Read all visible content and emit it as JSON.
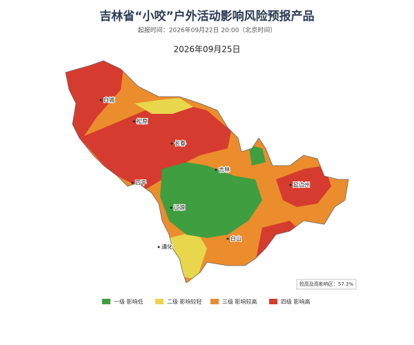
{
  "header": {
    "title": "吉林省“小咬”户外活动影响风险预报产品",
    "subtitle": "起报时间：2026年09月22日 20:00（北京时间）",
    "date": "2026年09月25日"
  },
  "cities": [
    "白城",
    "松原",
    "长春",
    "吉林",
    "四平",
    "辽源",
    "通化",
    "白山",
    "延边州"
  ],
  "stat": "较高及高影响区：57.3%",
  "legend": [
    {
      "label": "一级 影响低",
      "color": "#3f9e3f"
    },
    {
      "label": "二级 影响较轻",
      "color": "#e8d74c"
    },
    {
      "label": "三级 影响较高",
      "color": "#eb8d2c"
    },
    {
      "label": "四级 影响高",
      "color": "#d63b2f"
    }
  ]
}
